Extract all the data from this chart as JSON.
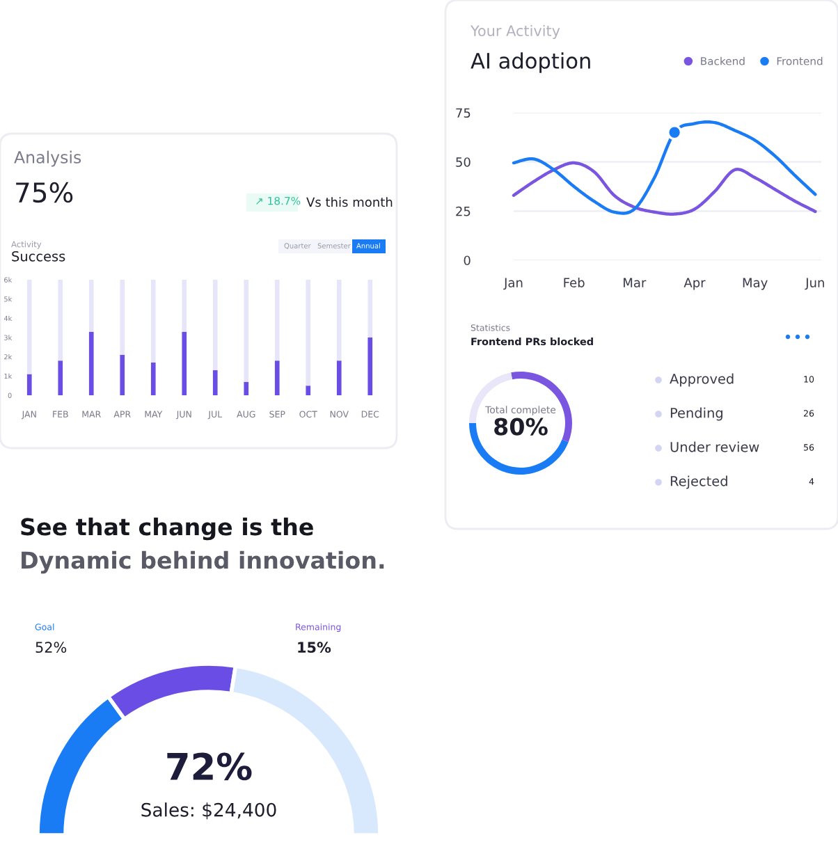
{
  "chart_data": [
    {
      "type": "bar",
      "title": "Analysis",
      "annotations": [
        "75%",
        "↗ 18.7%",
        "Vs this month",
        "Activity",
        "Success",
        "Quarter",
        "Semester",
        "Annual"
      ],
      "categories": [
        "JAN",
        "FEB",
        "MAR",
        "APR",
        "MAY",
        "JUN",
        "JUL",
        "AUG",
        "SEP",
        "OCT",
        "NOV",
        "DEC"
      ],
      "stacked": true,
      "ylim": [
        0,
        6000
      ],
      "yticks": [
        0,
        {
          "value": 1000,
          "label": "1k"
        },
        {
          "value": 2000,
          "label": "2k"
        },
        {
          "value": 3000,
          "label": "3k"
        },
        {
          "value": 4000,
          "label": "4k"
        },
        {
          "value": 5000,
          "label": "5k"
        },
        {
          "value": 6000,
          "label": "6k"
        }
      ],
      "series": [
        {
          "color": "#6a4de4",
          "values": [
            1100,
            1800,
            3300,
            2100,
            1700,
            3300,
            1300,
            700,
            1800,
            500,
            1800,
            3000
          ]
        },
        {
          "color": "#e7e5f9",
          "values": [
            4900,
            4200,
            2700,
            3900,
            4300,
            2700,
            4700,
            5300,
            4200,
            5500,
            4200,
            3000
          ]
        }
      ]
    },
    {
      "type": "line",
      "subtitle": "Your Activity",
      "title": "AI adoption",
      "ylim": [
        0,
        75
      ],
      "categories": [
        "Jan",
        null,
        null,
        "Feb",
        null,
        null,
        "Mar",
        null,
        null,
        "Apr",
        null,
        null,
        "May",
        null,
        null,
        "Jun"
      ],
      "yticks": [
        0,
        25,
        50,
        75
      ],
      "grid": "y",
      "legend": "top right",
      "line_style": "solid",
      "series": [
        {
          "name": "Backend",
          "color": "#7a55e0",
          "values": [
            33,
            40,
            46,
            49.5,
            45,
            33,
            27,
            24.5,
            23.5,
            26,
            35,
            46,
            42,
            36,
            30,
            24.8
          ]
        },
        {
          "name": "Frontend",
          "color": "#1a7cf5",
          "values": [
            49.5,
            51.5,
            46,
            37.5,
            30,
            24.5,
            26,
            42,
            65,
            69.5,
            70,
            66,
            61,
            53,
            43,
            33.5
          ]
        },
        {
          "type": "scatter",
          "marker": "circle",
          "color": "#1a7cf5",
          "values": [
            null,
            null,
            null,
            null,
            null,
            null,
            null,
            null,
            65,
            null,
            null,
            null,
            null,
            null,
            null,
            null
          ]
        }
      ]
    },
    {
      "type": "donut",
      "subtitle": "Statistics",
      "title": "Frontend PRs blocked",
      "categories": [
        null,
        null,
        null
      ],
      "values": [
        44,
        34,
        22
      ],
      "colors": [
        "#1a7cf5",
        "#7a55e0",
        "#e8e6f8"
      ],
      "annotations": [
        "Total complete",
        "80%",
        "Approved",
        "10",
        "Pending",
        "26",
        "Under review",
        "56",
        "Rejected",
        "4"
      ]
    },
    {
      "type": "donut",
      "title": "See that change is the",
      "subtitle": "Dynamic behind innovation.",
      "categories": [
        null,
        null,
        null
      ],
      "values": [
        30,
        25,
        45
      ],
      "colors": [
        "#1a7cf5",
        "#6a4de4",
        "#d9e9fd"
      ],
      "annotations": [
        "Goal",
        "52%",
        "Remaining",
        "15%",
        "72%",
        "Sales: $24,400"
      ]
    }
  ]
}
